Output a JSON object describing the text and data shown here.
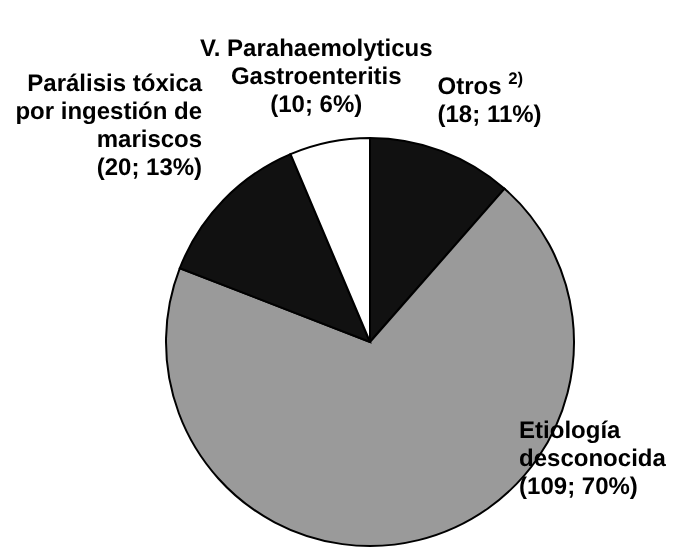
{
  "chart_data": {
    "type": "pie",
    "categories": [
      "Otros $^{2)}$",
      "Etiología desconocida",
      "Parálisis tóxica por ingestión de mariscos",
      "V. Parahaemolyticus Gastroenteritis"
    ],
    "values": [
      18,
      109,
      20,
      10
    ],
    "value_labels": [
      "(18; 11%)",
      "(109; 70%)",
      "(20; 13%)",
      "(10; 6%)"
    ],
    "colors": [
      "#111111",
      "#9a9a9a",
      "#111111",
      "#ffffff"
    ]
  }
}
